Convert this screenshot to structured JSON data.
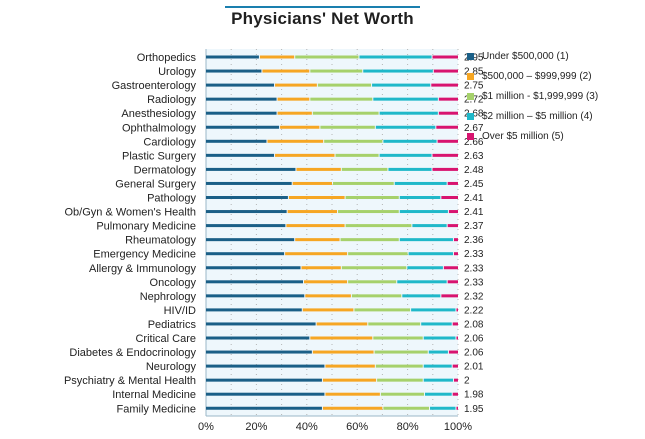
{
  "chart_data": {
    "type": "bar",
    "orientation": "horizontal",
    "stacked": true,
    "title": "Physicians' Net Worth",
    "xlabel": "",
    "ylabel": "",
    "xlim": [
      0,
      100
    ],
    "x_ticks": [
      "0%",
      "20%",
      "40%",
      "60%",
      "80%",
      "100%"
    ],
    "grid": true,
    "legend_position": "right",
    "categories": [
      "Orthopedics",
      "Urology",
      "Gastroenterology",
      "Radiology",
      "Anesthesiology",
      "Ophthalmology",
      "Cardiology",
      "Plastic Surgery",
      "Dermatology",
      "General Surgery",
      "Pathology",
      "Ob/Gyn & Women's Health",
      "Pulmonary Medicine",
      "Rheumatology",
      "Emergency Medicine",
      "Allergy & Immunology",
      "Oncology",
      "Nephrology",
      "HIV/ID",
      "Pediatrics",
      "Critical Care",
      "Diabetes & Endocrinology",
      "Neurology",
      "Psychiatry & Mental Health",
      "Internal Medicine",
      "Family Medicine"
    ],
    "scores": [
      "2.95",
      "2.85",
      "2.75",
      "2.72",
      "2.68",
      "2.67",
      "2.66",
      "2.63",
      "2.48",
      "2.45",
      "2.41",
      "2.41",
      "2.37",
      "2.36",
      "2.33",
      "2.33",
      "2.33",
      "2.32",
      "2.22",
      "2.08",
      "2.06",
      "2.06",
      "2.01",
      "2",
      "1.98",
      "1.95"
    ],
    "series": [
      {
        "name": "Under $500,000 (1)",
        "color": "#1a5f87",
        "values": [
          21,
          22,
          27,
          28,
          28,
          29,
          24,
          27,
          35.5,
          34,
          32.5,
          32,
          31.5,
          35,
          31,
          37.5,
          38.5,
          39,
          38,
          43.5,
          41,
          42,
          47,
          46,
          47,
          46
        ]
      },
      {
        "name": "$500,000 – $999,999 (2)",
        "color": "#f6a623",
        "values": [
          14,
          19,
          17,
          13,
          14,
          16,
          22.5,
          24,
          18,
          16,
          22.5,
          20,
          23.5,
          18,
          25,
          16,
          17.5,
          18.5,
          20.5,
          20.5,
          25,
          24.5,
          20,
          21.5,
          22,
          24
        ]
      },
      {
        "name": "$1 million - $1,999,999 (3)",
        "color": "#a6d16b",
        "values": [
          25.5,
          21,
          21.5,
          25,
          26.5,
          22,
          23.5,
          17.5,
          18.5,
          24.5,
          21.5,
          24.5,
          26.5,
          23.5,
          24,
          26,
          19.5,
          20,
          22.5,
          21,
          20,
          21.5,
          19,
          18.5,
          17.5,
          18.5
        ]
      },
      {
        "name": "$2 million – $5 million (4)",
        "color": "#1fb8c9",
        "values": [
          29,
          28,
          23.5,
          26,
          23.5,
          24,
          21.5,
          21,
          17.5,
          21,
          16.5,
          19.5,
          14,
          21.5,
          18,
          14.5,
          20,
          15.5,
          18,
          12.5,
          13,
          8,
          11.5,
          12,
          11,
          10.5
        ]
      },
      {
        "name": "Over $5 million (5)",
        "color": "#d8146f",
        "values": [
          10.5,
          10,
          11,
          8,
          8,
          9,
          8.5,
          10.5,
          10.5,
          4.5,
          7,
          4,
          4.5,
          2,
          2,
          6,
          4.5,
          7,
          1,
          2.5,
          1,
          4,
          2.5,
          2,
          2.5,
          1
        ]
      }
    ]
  }
}
